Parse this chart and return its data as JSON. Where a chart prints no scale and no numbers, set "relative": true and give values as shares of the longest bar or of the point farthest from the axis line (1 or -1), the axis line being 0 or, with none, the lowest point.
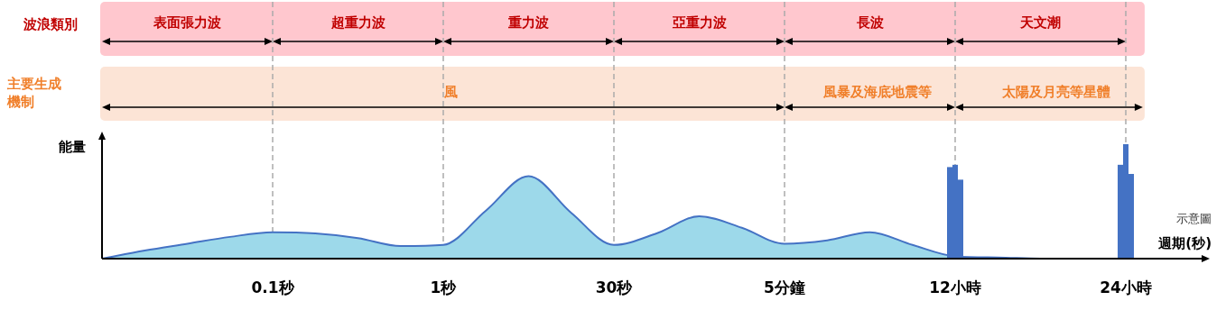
{
  "chart_data": [
    {
      "type": "other",
      "title": "波浪類別",
      "annotations": [
        "表面張力波",
        "超重力波",
        "重力波",
        "亞重力波",
        "長波",
        "天文潮"
      ]
    },
    {
      "type": "other",
      "title": "主要生成機制",
      "annotations": [
        "風",
        "風暴及海底地震等",
        "太陽及月亮等星體"
      ]
    },
    {
      "type": "area",
      "xlabel": "週期(秒)",
      "ylabel": "能量",
      "relative": true,
      "grid": "x",
      "categories": [
        null,
        null,
        null,
        null,
        "0.1秒",
        null,
        null,
        null,
        "1秒",
        null,
        null,
        null,
        "30秒",
        null,
        null,
        null,
        "5分鐘",
        null,
        null,
        null,
        "12小時",
        null,
        null,
        null,
        "24小時",
        null
      ],
      "series": [
        {
          "type": "area",
          "color": "#9dd9ea",
          "values": [
            0,
            0.07,
            0.13,
            0.19,
            0.23,
            0.22,
            0.18,
            0.11,
            0.12,
            0.42,
            0.72,
            0.4,
            0.12,
            0.22,
            0.37,
            0.27,
            0.13,
            0.16,
            0.23,
            0.12,
            0.02,
            0.01,
            0,
            0,
            0,
            0
          ]
        },
        {
          "type": "bar",
          "color": "#4472c4",
          "values": [
            null,
            null,
            null,
            null,
            null,
            null,
            null,
            null,
            null,
            null,
            null,
            null,
            null,
            null,
            null,
            null,
            null,
            null,
            null,
            null,
            0.8,
            null,
            null,
            null,
            0.82,
            null
          ]
        },
        {
          "type": "bar",
          "color": "#4472c4",
          "values": [
            null,
            null,
            null,
            null,
            null,
            null,
            null,
            null,
            null,
            null,
            null,
            null,
            null,
            null,
            null,
            null,
            null,
            null,
            null,
            null,
            0.82,
            null,
            null,
            null,
            1,
            null
          ]
        },
        {
          "type": "bar",
          "color": "#4472c4",
          "values": [
            null,
            null,
            null,
            null,
            null,
            null,
            null,
            null,
            null,
            null,
            null,
            null,
            null,
            null,
            null,
            null,
            null,
            null,
            null,
            null,
            0.69,
            null,
            null,
            null,
            0.74,
            null
          ]
        }
      ],
      "annotations": [
        "示意圖"
      ]
    }
  ]
}
